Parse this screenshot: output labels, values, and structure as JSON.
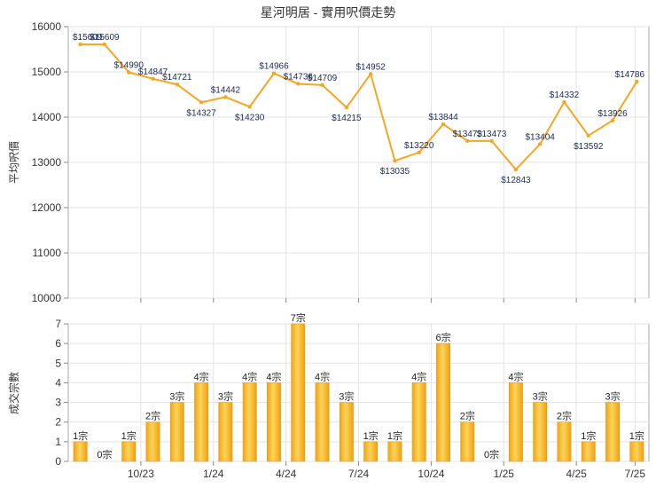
{
  "chart_data": [
    {
      "type": "line",
      "title": "星河明居 - 實用呎價走勢",
      "ylabel": "平均呎價",
      "ylim": [
        10000,
        16000
      ],
      "y_ticks": [
        10000,
        11000,
        12000,
        13000,
        14000,
        15000,
        16000
      ],
      "x_ticks": [
        "10/23",
        "1/24",
        "4/24",
        "7/24",
        "10/24",
        "1/25",
        "4/25",
        "7/25"
      ],
      "grid": true,
      "line_color": "#f5a623",
      "values": [
        15609,
        15609,
        14990,
        14847,
        14721,
        14327,
        14442,
        14230,
        14966,
        14736,
        14709,
        14215,
        14952,
        13035,
        13220,
        13844,
        13473,
        13473,
        12843,
        13404,
        14332,
        13592,
        13926,
        14786
      ],
      "labels": [
        "$15609",
        "$15609",
        "$14990",
        "$14847",
        "$14721",
        "$14327",
        "$14442",
        "$14230",
        "$14966",
        "$14736",
        "$14709",
        "$14215",
        "$14952",
        "$13035",
        "$13220",
        "$13844",
        "$13473",
        "$13473",
        "$12843",
        "$13404",
        "$14332",
        "$13592",
        "$13926",
        "$14786"
      ]
    },
    {
      "type": "bar",
      "ylabel": "成交宗數",
      "ylim": [
        0,
        7
      ],
      "y_ticks": [
        0,
        1,
        2,
        3,
        4,
        5,
        6,
        7
      ],
      "x_ticks": [
        "10/23",
        "1/24",
        "4/24",
        "7/24",
        "10/24",
        "1/25",
        "4/25",
        "7/25"
      ],
      "grid": true,
      "bar_color": "#f5b52a",
      "values": [
        1,
        0,
        1,
        2,
        3,
        4,
        3,
        4,
        4,
        7,
        4,
        3,
        1,
        1,
        4,
        6,
        2,
        0,
        4,
        3,
        2,
        1,
        3,
        1
      ],
      "labels": [
        "1宗",
        "0宗",
        "1宗",
        "2宗",
        "3宗",
        "4宗",
        "3宗",
        "4宗",
        "4宗",
        "7宗",
        "4宗",
        "3宗",
        "1宗",
        "1宗",
        "4宗",
        "6宗",
        "2宗",
        "0宗",
        "4宗",
        "3宗",
        "2宗",
        "1宗",
        "3宗",
        "1宗"
      ]
    }
  ]
}
